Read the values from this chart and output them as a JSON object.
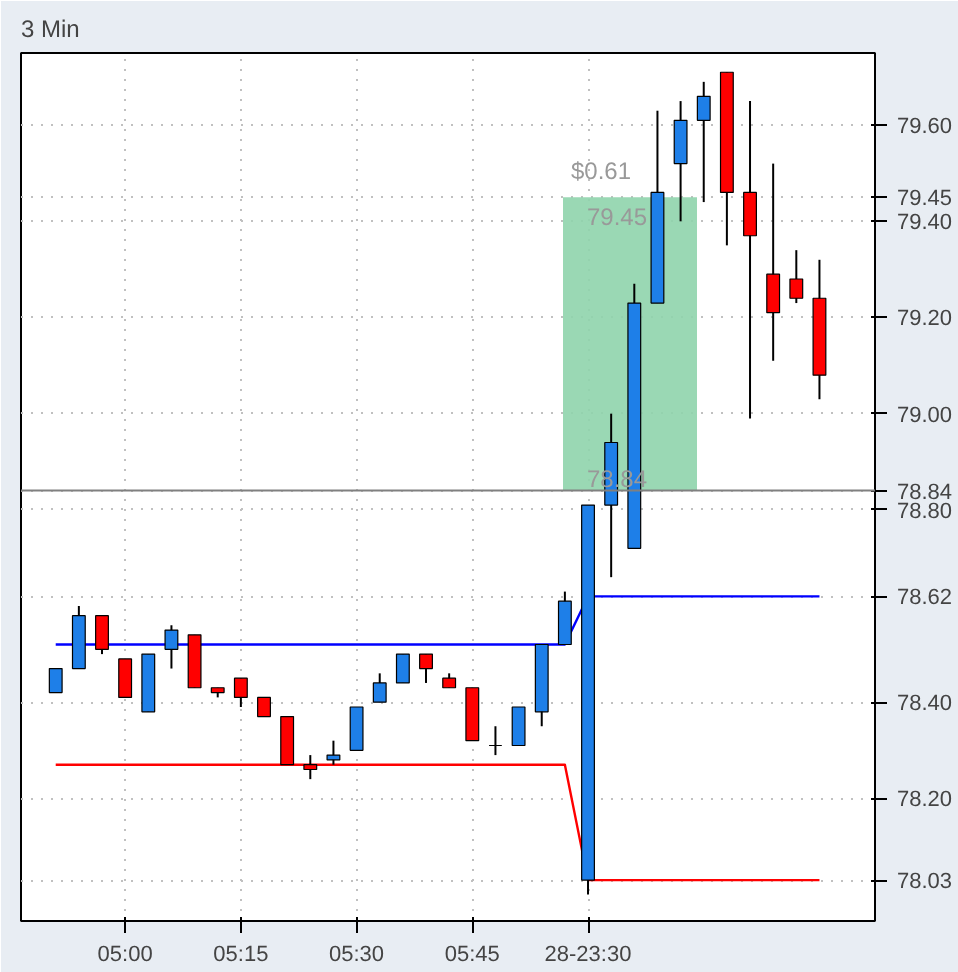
{
  "chart_data": {
    "type": "candlestick",
    "title": "3 Min",
    "categories": [
      null,
      null,
      null,
      "05:00",
      null,
      null,
      null,
      null,
      "05:15",
      null,
      null,
      null,
      null,
      "05:30",
      null,
      null,
      null,
      null,
      "05:45",
      null,
      null,
      null,
      null,
      "28-23:30",
      null,
      null,
      null,
      null,
      null,
      null,
      null,
      null,
      null,
      null
    ],
    "ohlc": [
      [
        78.42,
        78.47,
        78.42,
        78.47
      ],
      [
        78.47,
        78.6,
        78.47,
        78.58
      ],
      [
        78.58,
        78.58,
        78.5,
        78.51
      ],
      [
        78.49,
        78.49,
        78.41,
        78.41
      ],
      [
        78.38,
        78.5,
        78.38,
        78.5
      ],
      [
        78.51,
        78.56,
        78.47,
        78.55
      ],
      [
        78.54,
        78.54,
        78.43,
        78.43
      ],
      [
        78.43,
        78.43,
        78.41,
        78.42
      ],
      [
        78.45,
        78.45,
        78.39,
        78.41
      ],
      [
        78.41,
        78.41,
        78.37,
        78.37
      ],
      [
        78.37,
        78.37,
        78.27,
        78.27
      ],
      [
        78.27,
        78.29,
        78.24,
        78.26
      ],
      [
        78.28,
        78.32,
        78.27,
        78.29
      ],
      [
        78.3,
        78.39,
        78.3,
        78.39
      ],
      [
        78.4,
        78.46,
        78.4,
        78.44
      ],
      [
        78.44,
        78.5,
        78.44,
        78.5
      ],
      [
        78.5,
        78.5,
        78.44,
        78.47
      ],
      [
        78.45,
        78.46,
        78.43,
        78.43
      ],
      [
        78.43,
        78.43,
        78.32,
        78.32
      ],
      [
        78.31,
        78.35,
        78.29,
        78.31
      ],
      [
        78.31,
        78.39,
        78.31,
        78.39
      ],
      [
        78.38,
        78.52,
        78.35,
        78.52
      ],
      [
        78.52,
        78.63,
        78.52,
        78.61
      ],
      [
        78.03,
        78.81,
        78.0,
        78.81
      ],
      [
        78.81,
        79.0,
        78.66,
        78.94
      ],
      [
        78.72,
        79.27,
        78.72,
        79.23
      ],
      [
        79.23,
        79.63,
        79.23,
        79.46
      ],
      [
        79.52,
        79.65,
        79.4,
        79.61
      ],
      [
        79.61,
        79.69,
        79.44,
        79.66
      ],
      [
        79.71,
        79.71,
        79.35,
        79.46
      ],
      [
        79.46,
        79.65,
        78.99,
        79.37
      ],
      [
        79.29,
        79.52,
        79.11,
        79.21
      ],
      [
        79.28,
        79.34,
        79.23,
        79.24
      ],
      [
        79.24,
        79.32,
        79.03,
        79.08
      ]
    ],
    "colors": [
      "#1e7fe8",
      "#1e7fe8",
      "#ff0000",
      "#ff0000",
      "#1e7fe8",
      "#1e7fe8",
      "#ff0000",
      "#ff0000",
      "#ff0000",
      "#ff0000",
      "#ff0000",
      "#ff0000",
      "#1e7fe8",
      "#1e7fe8",
      "#1e7fe8",
      "#1e7fe8",
      "#ff0000",
      "#ff0000",
      "#ff0000",
      "#000000",
      "#1e7fe8",
      "#1e7fe8",
      "#1e7fe8",
      "#1e7fe8",
      "#1e7fe8",
      "#1e7fe8",
      "#1e7fe8",
      "#1e7fe8",
      "#1e7fe8",
      "#ff0000",
      "#ff0000",
      "#ff0000",
      "#ff0000",
      "#ff0000"
    ],
    "series": [
      {
        "type": "line",
        "color": "#0000ff",
        "values": [
          78.52,
          78.52,
          78.52,
          78.52,
          78.52,
          78.52,
          78.52,
          78.52,
          78.52,
          78.52,
          78.52,
          78.52,
          78.52,
          78.52,
          78.52,
          78.52,
          78.52,
          78.52,
          78.52,
          78.52,
          78.52,
          78.52,
          78.52,
          78.62,
          78.62,
          78.62,
          78.62,
          78.62,
          78.62,
          78.62,
          78.62,
          78.62,
          78.62,
          78.62
        ]
      },
      {
        "type": "line",
        "color": "#ff0000",
        "values": [
          78.27,
          78.27,
          78.27,
          78.27,
          78.27,
          78.27,
          78.27,
          78.27,
          78.27,
          78.27,
          78.27,
          78.27,
          78.27,
          78.27,
          78.27,
          78.27,
          78.27,
          78.27,
          78.27,
          78.27,
          78.27,
          78.27,
          78.27,
          78.03,
          78.03,
          78.03,
          78.03,
          78.03,
          78.03,
          78.03,
          78.03,
          78.03,
          78.03,
          78.03
        ]
      }
    ],
    "ylim": [
      77.945,
      79.75
    ],
    "yticks": [
      {
        "value": 78.03,
        "label": "78.03"
      },
      {
        "value": 78.2,
        "label": "78.20"
      },
      {
        "value": 78.4,
        "label": "78.40"
      },
      {
        "value": 78.62,
        "label": "78.62"
      },
      {
        "value": 78.8,
        "label": "78.80"
      },
      {
        "value": 78.84,
        "label": "78.84"
      },
      {
        "value": 79.45,
        "label": "79.45"
      },
      {
        "value": 79.0,
        "label": "79.00"
      },
      {
        "value": 79.2,
        "label": "79.20"
      },
      {
        "value": 79.4,
        "label": "79.40"
      },
      {
        "value": 79.6,
        "label": "79.60"
      }
    ],
    "ref_lines": [
      {
        "axis": "y",
        "value": 78.84,
        "color": "#808080"
      }
    ],
    "bands": [
      {
        "axis": "y",
        "from": 78.84,
        "to": 79.45,
        "label": "$0.61",
        "color": "#8fd4ac"
      }
    ],
    "annotations": [
      "79.45",
      "78.84"
    ],
    "grid": true
  }
}
